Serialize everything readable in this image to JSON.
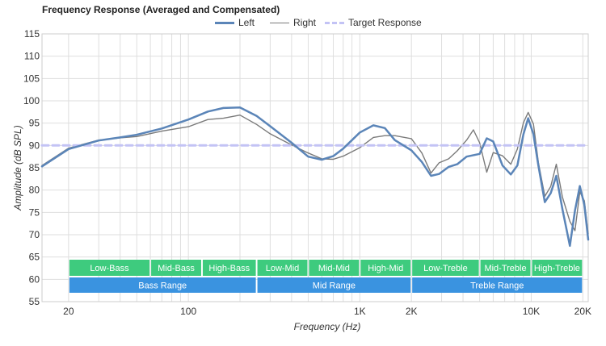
{
  "chart_data": {
    "type": "line",
    "title": "Frequency Response (Averaged and Compensated)",
    "xlabel": "Frequency (Hz)",
    "ylabel": "Amplitude (dB SPL)",
    "x_scale": "log",
    "xlim": [
      14,
      21500
    ],
    "ylim": [
      55,
      115
    ],
    "grid": true,
    "legend_position": "top-center",
    "yticks": [
      55,
      60,
      65,
      70,
      75,
      80,
      85,
      90,
      95,
      100,
      105,
      110,
      115
    ],
    "xticks": [
      {
        "value": 20,
        "label": "20"
      },
      {
        "value": 100,
        "label": "100"
      },
      {
        "value": 1000,
        "label": "1K"
      },
      {
        "value": 2000,
        "label": "2K"
      },
      {
        "value": 10000,
        "label": "10K"
      },
      {
        "value": 20000,
        "label": "20K"
      }
    ],
    "series": [
      {
        "name": "Left",
        "color": "#5b85b8",
        "points": [
          [
            14,
            85.3
          ],
          [
            20,
            89.2
          ],
          [
            30,
            91.1
          ],
          [
            40,
            91.8
          ],
          [
            50,
            92.4
          ],
          [
            70,
            93.8
          ],
          [
            100,
            95.8
          ],
          [
            130,
            97.6
          ],
          [
            160,
            98.4
          ],
          [
            200,
            98.5
          ],
          [
            250,
            96.6
          ],
          [
            300,
            94.3
          ],
          [
            400,
            90.6
          ],
          [
            500,
            87.5
          ],
          [
            600,
            86.8
          ],
          [
            700,
            87.6
          ],
          [
            800,
            89.3
          ],
          [
            1000,
            92.9
          ],
          [
            1200,
            94.5
          ],
          [
            1400,
            93.9
          ],
          [
            1600,
            91.2
          ],
          [
            2000,
            88.9
          ],
          [
            2300,
            86.3
          ],
          [
            2600,
            83.2
          ],
          [
            2900,
            83.6
          ],
          [
            3300,
            85.2
          ],
          [
            3700,
            85.8
          ],
          [
            4200,
            87.5
          ],
          [
            5000,
            88.1
          ],
          [
            5500,
            91.6
          ],
          [
            6000,
            90.9
          ],
          [
            6800,
            85.5
          ],
          [
            7600,
            83.5
          ],
          [
            8300,
            85.5
          ],
          [
            9000,
            92.5
          ],
          [
            9600,
            96.1
          ],
          [
            10300,
            92.5
          ],
          [
            11000,
            85.5
          ],
          [
            12000,
            77.3
          ],
          [
            13000,
            79.3
          ],
          [
            14000,
            83.2
          ],
          [
            15200,
            75.7
          ],
          [
            16800,
            67.5
          ],
          [
            18000,
            75.4
          ],
          [
            19200,
            80.9
          ],
          [
            20400,
            76.7
          ],
          [
            21500,
            68.9
          ]
        ]
      },
      {
        "name": "Right",
        "color": "#7a7a7a",
        "points": [
          [
            14,
            85.5
          ],
          [
            20,
            89.4
          ],
          [
            30,
            91.2
          ],
          [
            40,
            91.7
          ],
          [
            50,
            92.0
          ],
          [
            70,
            93.2
          ],
          [
            100,
            94.2
          ],
          [
            130,
            95.8
          ],
          [
            160,
            96.1
          ],
          [
            200,
            96.8
          ],
          [
            250,
            94.7
          ],
          [
            300,
            92.6
          ],
          [
            400,
            90.1
          ],
          [
            500,
            88.3
          ],
          [
            600,
            87.0
          ],
          [
            700,
            86.9
          ],
          [
            800,
            87.6
          ],
          [
            1000,
            89.5
          ],
          [
            1200,
            91.8
          ],
          [
            1400,
            92.2
          ],
          [
            1600,
            92.2
          ],
          [
            2000,
            91.5
          ],
          [
            2300,
            88.3
          ],
          [
            2600,
            83.8
          ],
          [
            2900,
            86.1
          ],
          [
            3300,
            87.0
          ],
          [
            3700,
            88.8
          ],
          [
            4200,
            91.2
          ],
          [
            4600,
            93.5
          ],
          [
            5000,
            90.6
          ],
          [
            5500,
            84.0
          ],
          [
            6000,
            88.4
          ],
          [
            6800,
            87.7
          ],
          [
            7600,
            85.8
          ],
          [
            8300,
            89.2
          ],
          [
            9000,
            95.1
          ],
          [
            9600,
            97.4
          ],
          [
            10300,
            94.8
          ],
          [
            11000,
            86.2
          ],
          [
            12000,
            78.6
          ],
          [
            13000,
            80.8
          ],
          [
            14000,
            85.8
          ],
          [
            15200,
            78.4
          ],
          [
            16800,
            73.0
          ],
          [
            18000,
            70.9
          ],
          [
            19200,
            79.6
          ],
          [
            20400,
            77.6
          ],
          [
            21500,
            70.2
          ]
        ]
      },
      {
        "name": "Target Response",
        "color": "#c3c3f5",
        "style": "dashed",
        "points": [
          [
            14,
            90
          ],
          [
            21500,
            90
          ]
        ]
      }
    ],
    "bands": [
      {
        "row": 1,
        "label": "Low-Bass",
        "from": 20,
        "to": 60,
        "color": "#3ecb7e"
      },
      {
        "row": 1,
        "label": "Mid-Bass",
        "from": 60,
        "to": 120,
        "color": "#3ecb7e"
      },
      {
        "row": 1,
        "label": "High-Bass",
        "from": 120,
        "to": 250,
        "color": "#3ecb7e"
      },
      {
        "row": 1,
        "label": "Low-Mid",
        "from": 250,
        "to": 500,
        "color": "#3ecb7e"
      },
      {
        "row": 1,
        "label": "Mid-Mid",
        "from": 500,
        "to": 1000,
        "color": "#3ecb7e"
      },
      {
        "row": 1,
        "label": "High-Mid",
        "from": 1000,
        "to": 2000,
        "color": "#3ecb7e"
      },
      {
        "row": 1,
        "label": "Low-Treble",
        "from": 2000,
        "to": 5000,
        "color": "#3ecb7e"
      },
      {
        "row": 1,
        "label": "Mid-Treble",
        "from": 5000,
        "to": 10000,
        "color": "#3ecb7e"
      },
      {
        "row": 1,
        "label": "High-Treble",
        "from": 10000,
        "to": 20000,
        "color": "#3ecb7e"
      },
      {
        "row": 2,
        "label": "Bass Range",
        "from": 20,
        "to": 250,
        "color": "#3a93e0"
      },
      {
        "row": 2,
        "label": "Mid Range",
        "from": 250,
        "to": 2000,
        "color": "#3a93e0"
      },
      {
        "row": 2,
        "label": "Treble Range",
        "from": 2000,
        "to": 20000,
        "color": "#3a93e0"
      }
    ]
  }
}
